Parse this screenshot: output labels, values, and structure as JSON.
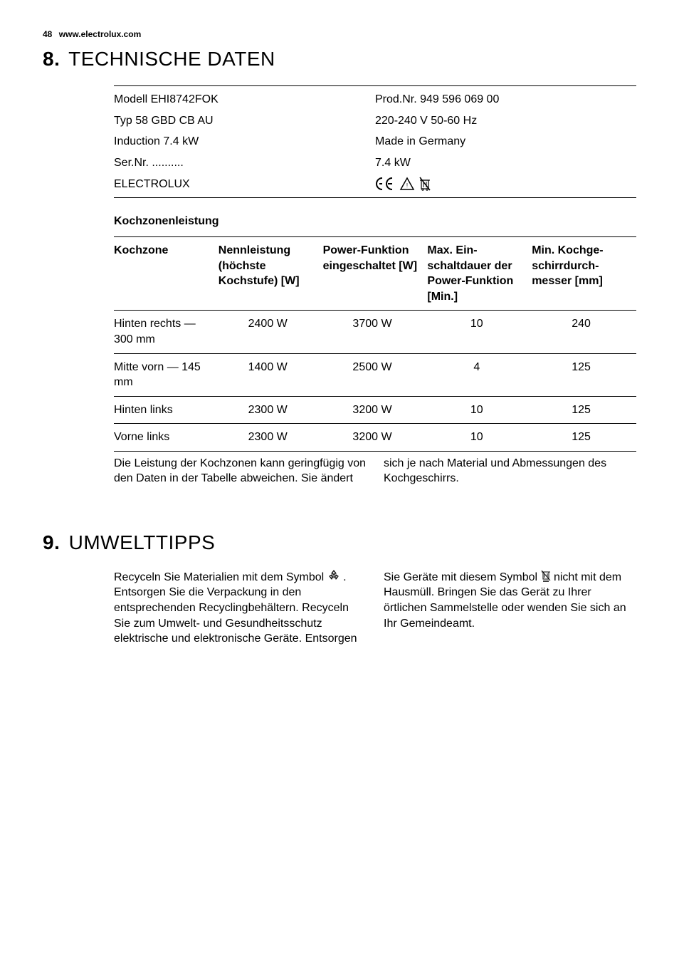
{
  "page": {
    "number": "48",
    "site": "www.electrolux.com"
  },
  "section8": {
    "num": "8.",
    "title": "TECHNISCHE DATEN",
    "spec_rows": [
      [
        "Modell EHI8742FOK",
        "Prod.Nr. 949 596 069 00"
      ],
      [
        "Typ 58 GBD CB AU",
        "220-240 V 50-60 Hz"
      ],
      [
        "Induction 7.4 kW",
        "Made in Germany"
      ],
      [
        "Ser.Nr. ..........",
        "7.4 kW"
      ],
      [
        "ELECTROLUX",
        "__CERT_ICONS__"
      ]
    ],
    "subheading": "Kochzonenleistung",
    "zone_headers": [
      "Kochzone",
      "Nennleistung (höchste Kochstufe) [W]",
      "Power-Funk­tion einge­schaltet [W]",
      "Max. Ein­schaltdauer der Power-Funktion [Min.]",
      "Min. Kochge­schirrdurch­messer [mm]"
    ],
    "zone_rows": [
      [
        "Hinten rechts —300 mm",
        "2400 W",
        "3700 W",
        "10",
        "240"
      ],
      [
        "Mitte vorn — 145 mm",
        "1400 W",
        "2500 W",
        "4",
        "125"
      ],
      [
        "Hinten links",
        "2300 W",
        "3200 W",
        "10",
        "125"
      ],
      [
        "Vorne links",
        "2300 W",
        "3200 W",
        "10",
        "125"
      ]
    ],
    "note": "Die Leistung der Kochzonen kann geringfü­gig von den Daten in der Tabelle abwei­chen. Sie ändert sich je nach Material und Abmessungen des Kochgeschirrs."
  },
  "section9": {
    "num": "9.",
    "title": "UMWELTTIPPS",
    "text_parts": [
      "Recyceln Sie Materialien mit dem Symbol ",
      " . Entsorgen Sie die Verpackung in den entsprechenden Recyclingbehältern. Recyceln Sie zum Umwelt- und Gesundheitsschutz elektrische und elektronische Geräte. Entsorgen Sie Geräte mit diesem Symbol ",
      " nicht mit dem Hausmüll. Bringen Sie das Gerät zu Ihrer örtlichen Sammelstelle oder wenden Sie sich an Ihr Gemeindeamt."
    ]
  },
  "colors": {
    "text": "#000000",
    "bg": "#ffffff",
    "rule": "#000000"
  }
}
